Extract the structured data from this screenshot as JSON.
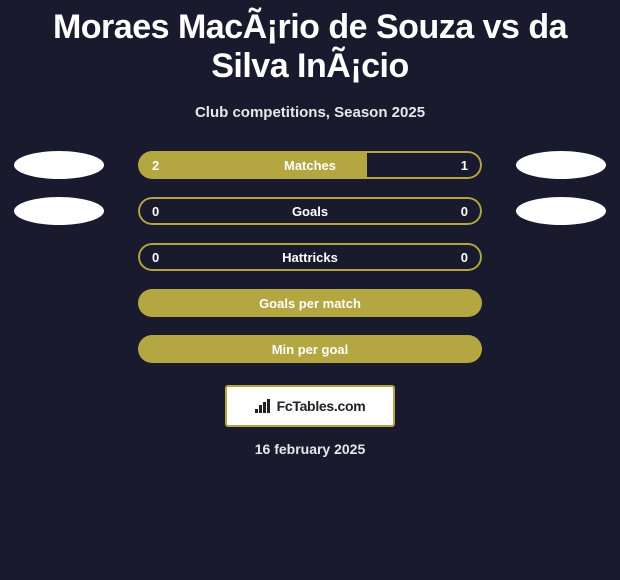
{
  "title": "Moraes MacÃ¡rio de Souza vs da Silva InÃ¡cio",
  "subtitle": "Club competitions, Season 2025",
  "date": "16 february 2025",
  "logo": {
    "text": "FcTables.com"
  },
  "colors": {
    "accent": "#b4a640",
    "accent_dark": "#8f8433",
    "bg": "#1a1a2e",
    "bar_empty": "#b4a640",
    "text_light": "#ffffff"
  },
  "stats": [
    {
      "label": "Matches",
      "left_val": "2",
      "right_val": "1",
      "left_num": 2,
      "right_num": 1,
      "left_pct": 66.7,
      "right_pct": 33.3,
      "show_avatars": true,
      "fill_color": "#b4a640",
      "border_color": "#b4a640",
      "empty_color": "transparent"
    },
    {
      "label": "Goals",
      "left_val": "0",
      "right_val": "0",
      "left_num": 0,
      "right_num": 0,
      "left_pct": 0,
      "right_pct": 0,
      "show_avatars": true,
      "fill_color": "#b4a640",
      "border_color": "#b4a640",
      "empty_color": "transparent"
    },
    {
      "label": "Hattricks",
      "left_val": "0",
      "right_val": "0",
      "left_num": 0,
      "right_num": 0,
      "left_pct": 0,
      "right_pct": 0,
      "show_avatars": false,
      "fill_color": "#b4a640",
      "border_color": "#b4a640",
      "empty_color": "transparent"
    },
    {
      "label": "Goals per match",
      "left_val": "",
      "right_val": "",
      "left_num": 0,
      "right_num": 0,
      "left_pct": 100,
      "right_pct": 0,
      "show_avatars": false,
      "fill_color": "#b4a640",
      "border_color": "#b4a640",
      "empty_color": "transparent",
      "label_color": "#ffffff",
      "full_fill": true
    },
    {
      "label": "Min per goal",
      "left_val": "",
      "right_val": "",
      "left_num": 0,
      "right_num": 0,
      "left_pct": 100,
      "right_pct": 0,
      "show_avatars": false,
      "fill_color": "#b4a640",
      "border_color": "#b4a640",
      "empty_color": "transparent",
      "label_color": "#ffffff",
      "full_fill": true
    }
  ]
}
